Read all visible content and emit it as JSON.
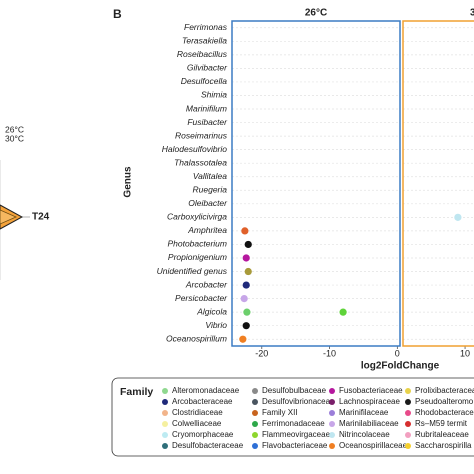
{
  "panel_label": "B",
  "radar_fragment": {
    "legend_labels": [
      "26°C",
      "30°C"
    ],
    "axis_label": "T24"
  },
  "chart_data": [
    {
      "type": "dot",
      "title": "26°C",
      "xlabel": "log2FoldChange",
      "ylabel": "Genus",
      "box_color": "#3b7cc4",
      "categories": [
        "Ferrimonas",
        "Terasakiella",
        "Roseibacillus",
        "Gilvibacter",
        "Desulfocella",
        "Shimia",
        "Marinifilum",
        "Fusibacter",
        "Roseimarinus",
        "Halodesulfovibrio",
        "Thalassotalea",
        "Vallitalea",
        "Ruegeria",
        "Oleibacter",
        "Carboxylicivirga",
        "Amphritea",
        "Photobacterium",
        "Propionigenium",
        "Unidentified genus",
        "Arcobacter",
        "Persicobacter",
        "Algicola",
        "Vibrio",
        "Oceanospirillum"
      ],
      "xlim": [
        -24.4,
        0.4
      ],
      "xticks": [
        -20,
        -10,
        0
      ],
      "grid": true,
      "series": [
        {
          "color": "#e0602a",
          "x": [
            -22.5
          ],
          "y": [
            "Amphritea"
          ]
        },
        {
          "color": "#111111",
          "x": [
            -22,
            -22.3
          ],
          "y": [
            "Photobacterium",
            "Vibrio"
          ]
        },
        {
          "color": "#b5179e",
          "x": [
            -22.3
          ],
          "y": [
            "Propionigenium"
          ]
        },
        {
          "color": "#a89a3a",
          "x": [
            -22
          ],
          "y": [
            "Unidentified genus"
          ]
        },
        {
          "color": "#1f2a7a",
          "x": [
            -22.3
          ],
          "y": [
            "Arcobacter"
          ]
        },
        {
          "color": "#c7a6e8",
          "x": [
            -22.6
          ],
          "y": [
            "Persicobacter"
          ]
        },
        {
          "color": "#6ccf6c",
          "x": [
            -22.2
          ],
          "y": [
            "Algicola"
          ]
        },
        {
          "color": "#5fd33a",
          "x": [
            -8
          ],
          "y": [
            "Algicola"
          ]
        },
        {
          "color": "#f07f22",
          "x": [
            -22.8
          ],
          "y": [
            "Oceanospirillum"
          ]
        }
      ]
    },
    {
      "type": "dot",
      "title": "3",
      "box_color": "#f0a030",
      "xlim": [
        -0.4,
        11.5
      ],
      "xticks": [
        10
      ],
      "grid": true,
      "series": [
        {
          "color": "#bfe6f0",
          "x": [
            8.8
          ],
          "y": [
            "Carboxylicivirga"
          ]
        }
      ]
    },
    {
      "type": "legend",
      "title": "Family",
      "entries": [
        {
          "name": "Alteromonadaceae",
          "color": "#8fd88f"
        },
        {
          "name": "Arcobacteraceae",
          "color": "#1f2a7a"
        },
        {
          "name": "Clostridiaceae",
          "color": "#f2b48a"
        },
        {
          "name": "Colwelliaceae",
          "color": "#f5f0a0"
        },
        {
          "name": "Cryomorphaceae",
          "color": "#bdebf2"
        },
        {
          "name": "Desulfobacteraceae",
          "color": "#2f6f7a"
        },
        {
          "name": "Desulfobulbaceae",
          "color": "#8a8a8a"
        },
        {
          "name": "Desulfovibrionaceae",
          "color": "#4a5560"
        },
        {
          "name": "Family XII",
          "color": "#c8641e"
        },
        {
          "name": "Ferrimonadaceae",
          "color": "#2ea84a"
        },
        {
          "name": "Flammeovirgaceae",
          "color": "#8ed62e"
        },
        {
          "name": "Flavobacteriaceae",
          "color": "#2e6fd6"
        },
        {
          "name": "Fusobacteriaceae",
          "color": "#b5179e"
        },
        {
          "name": "Lachnospiraceae",
          "color": "#7a1f6a"
        },
        {
          "name": "Marinifilaceae",
          "color": "#9b7ed9"
        },
        {
          "name": "Marinilabiliaceae",
          "color": "#c7a6e8"
        },
        {
          "name": "Nitrincolaceae",
          "color": "#bfe6f0"
        },
        {
          "name": "Oceanospirillaceae",
          "color": "#f07f22"
        },
        {
          "name": "Prolixibacteracea",
          "color": "#e8d24a"
        },
        {
          "name": "Pseudoalteromo",
          "color": "#1a1a1a"
        },
        {
          "name": "Rhodobacteracea",
          "color": "#e84a8a"
        },
        {
          "name": "Rs–M59 termit",
          "color": "#d62e2e"
        },
        {
          "name": "Rubritaleaceae",
          "color": "#f2a0c0"
        },
        {
          "name": "Saccharospirilla",
          "color": "#f5d02e"
        }
      ]
    }
  ]
}
